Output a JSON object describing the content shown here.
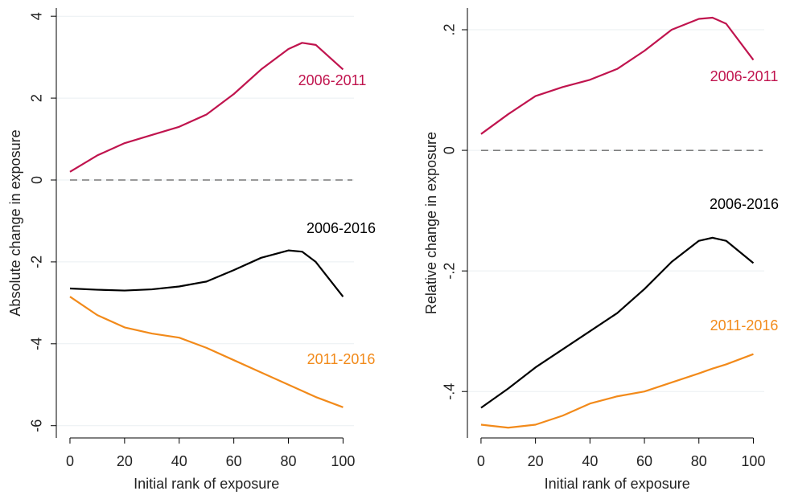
{
  "chart_data": [
    {
      "type": "line",
      "ylabel": "Absolute change in exposure",
      "xlabel": "Initial rank of exposure",
      "x": [
        0,
        10,
        20,
        30,
        40,
        50,
        60,
        70,
        80,
        85,
        90,
        100
      ],
      "xlim": [
        -5,
        104
      ],
      "xticks": [
        0,
        20,
        40,
        60,
        80,
        100
      ],
      "ylim": [
        -6.3,
        4.2
      ],
      "yticks": [
        -6,
        -4,
        -2,
        0,
        2,
        4
      ],
      "grid": true,
      "hline": 0,
      "series": [
        {
          "name": "2006-2011",
          "color": "#c0144e",
          "values": [
            0.2,
            0.6,
            0.9,
            1.1,
            1.3,
            1.6,
            2.1,
            2.7,
            3.2,
            3.35,
            3.3,
            2.7
          ]
        },
        {
          "name": "2006-2016",
          "color": "#000000",
          "values": [
            -2.65,
            -2.68,
            -2.7,
            -2.67,
            -2.6,
            -2.48,
            -2.2,
            -1.9,
            -1.72,
            -1.75,
            -2.0,
            -2.85
          ]
        },
        {
          "name": "2011-2016",
          "color": "#f28a1a",
          "values": [
            -2.85,
            -3.3,
            -3.6,
            -3.75,
            -3.85,
            -4.1,
            -4.4,
            -4.7,
            -5.0,
            -5.15,
            -5.3,
            -5.55
          ]
        }
      ]
    },
    {
      "type": "line",
      "ylabel": "Relative change in exposure",
      "xlabel": "Initial rank of exposure",
      "x": [
        0,
        10,
        20,
        30,
        40,
        50,
        60,
        70,
        80,
        85,
        90,
        100
      ],
      "xlim": [
        -5,
        104
      ],
      "xticks": [
        0,
        20,
        40,
        60,
        80,
        100
      ],
      "ylim": [
        -0.477,
        0.236
      ],
      "yticks": [
        {
          "value": -0.4,
          "label": "-.4"
        },
        {
          "value": -0.2,
          "label": "-.2"
        },
        0,
        {
          "value": 0.2,
          "label": ".2"
        }
      ],
      "grid": true,
      "hline": 0,
      "series": [
        {
          "name": "2006-2011",
          "color": "#c0144e",
          "values": [
            0.027,
            0.06,
            0.09,
            0.105,
            0.117,
            0.135,
            0.165,
            0.2,
            0.218,
            0.22,
            0.21,
            0.15
          ]
        },
        {
          "name": "2006-2016",
          "color": "#000000",
          "values": [
            -0.427,
            -0.395,
            -0.36,
            -0.33,
            -0.3,
            -0.27,
            -0.23,
            -0.185,
            -0.15,
            -0.145,
            -0.15,
            -0.187
          ]
        },
        {
          "name": "2011-2016",
          "color": "#f28a1a",
          "values": [
            -0.455,
            -0.46,
            -0.455,
            -0.44,
            -0.42,
            -0.408,
            -0.4,
            -0.385,
            -0.37,
            -0.362,
            -0.355,
            -0.338
          ]
        }
      ]
    }
  ]
}
